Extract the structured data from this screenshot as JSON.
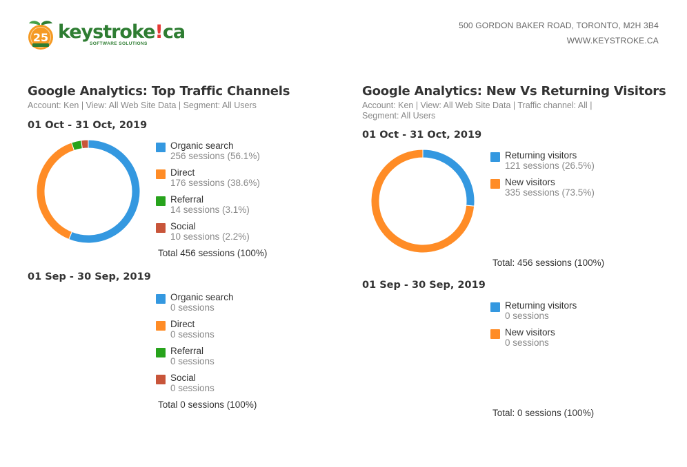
{
  "header": {
    "logo_text_main": "keystroke",
    "logo_text_bang": "!",
    "logo_text_tld": "ca",
    "logo_tagline": "SOFTWARE SOLUTIONS",
    "logo_badge_number": "25",
    "address_line1": "500 GORDON BAKER ROAD, TORONTO, M2H 3B4",
    "address_line2": "WWW.KEYSTROKE.CA"
  },
  "colors": {
    "blue": "#3498e0",
    "orange": "#ff8c26",
    "green": "#27a31c",
    "red": "#c8553a"
  },
  "chart_data": [
    {
      "type": "pie",
      "title": "Google Analytics: Top Traffic Channels",
      "subtitle": "Account: Ken | View: All Web Site Data | Segment: All Users",
      "period": "01 Oct - 31 Oct, 2019",
      "categories": [
        "Organic search",
        "Direct",
        "Referral",
        "Social"
      ],
      "values": [
        256,
        176,
        14,
        10
      ],
      "value_labels": [
        "256 sessions (56.1%)",
        "176 sessions (38.6%)",
        "14 sessions (3.1%)",
        "10 sessions (2.2%)"
      ],
      "colors": [
        "#3498e0",
        "#ff8c26",
        "#27a31c",
        "#c8553a"
      ],
      "total": "Total 456 sessions (100%)"
    },
    {
      "type": "pie",
      "title": "",
      "period": "01 Sep - 30 Sep, 2019",
      "categories": [
        "Organic search",
        "Direct",
        "Referral",
        "Social"
      ],
      "values": [
        0,
        0,
        0,
        0
      ],
      "value_labels": [
        "0 sessions",
        "0 sessions",
        "0 sessions",
        "0 sessions"
      ],
      "colors": [
        "#3498e0",
        "#ff8c26",
        "#27a31c",
        "#c8553a"
      ],
      "total": "Total 0 sessions (100%)"
    },
    {
      "type": "pie",
      "title": "Google Analytics: New Vs Returning Visitors",
      "subtitle_line1": "Account: Ken | View: All Web Site Data | Traffic channel: All |",
      "subtitle_line2": "Segment: All Users",
      "period": "01 Oct - 31 Oct, 2019",
      "categories": [
        "Returning visitors",
        "New visitors"
      ],
      "values": [
        121,
        335
      ],
      "value_labels": [
        "121 sessions (26.5%)",
        "335 sessions (73.5%)"
      ],
      "colors": [
        "#3498e0",
        "#ff8c26"
      ],
      "total": "Total: 456 sessions (100%)"
    },
    {
      "type": "pie",
      "title": "",
      "period": "01 Sep - 30 Sep, 2019",
      "categories": [
        "Returning visitors",
        "New visitors"
      ],
      "values": [
        0,
        0
      ],
      "value_labels": [
        "0 sessions",
        "0 sessions"
      ],
      "colors": [
        "#3498e0",
        "#ff8c26"
      ],
      "total": "Total: 0 sessions (100%)"
    }
  ]
}
